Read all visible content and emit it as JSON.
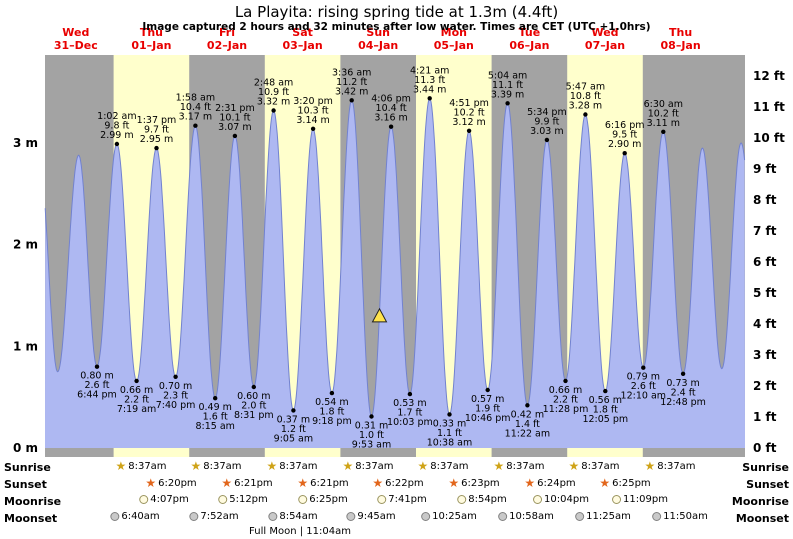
{
  "title": "La Playita: rising spring tide at 1.3m (4.4ft)",
  "subtitle": "Image captured 2 hours and 32 minutes after low water. Times are CET (UTC +1.0hrs)",
  "colors": {
    "plot_bg": "#a3a3a3",
    "day_band": "#ffffcc",
    "tide_fill": "#aeb8f2",
    "tide_stroke": "#7282cf",
    "day_label": "#e80000",
    "annotation": "#000000",
    "marker": "#ffe34d"
  },
  "chart_data": {
    "type": "area",
    "ylabel_left": "m",
    "ylabel_right": "ft",
    "y_axis_m": [
      "0 m",
      "1 m",
      "2 m",
      "3 m"
    ],
    "y_axis_ft": [
      "0 ft",
      "1 ft",
      "2 ft",
      "3 ft",
      "4 ft",
      "5 ft",
      "6 ft",
      "7 ft",
      "8 ft",
      "9 ft",
      "10 ft",
      "11 ft",
      "12 ft"
    ],
    "days": [
      {
        "dow": "Wed",
        "date": "31–Dec"
      },
      {
        "dow": "Thu",
        "date": "01–Jan"
      },
      {
        "dow": "Fri",
        "date": "02–Jan"
      },
      {
        "dow": "Sat",
        "date": "03–Jan"
      },
      {
        "dow": "Sun",
        "date": "04–Jan"
      },
      {
        "dow": "Mon",
        "date": "05–Jan"
      },
      {
        "dow": "Tue",
        "date": "06–Jan"
      },
      {
        "dow": "Wed",
        "date": "07–Jan"
      },
      {
        "dow": "Thu",
        "date": "08–Jan"
      }
    ],
    "shaded_days": [
      1,
      3,
      5,
      7
    ],
    "extremes": [
      {
        "type": "low",
        "day": 0,
        "time": "6:44 pm",
        "m": "0.80 m",
        "ft": "2.6 ft"
      },
      {
        "type": "high",
        "day": 1,
        "time": "1:02 am",
        "m": "2.99 m",
        "ft": "9.8 ft"
      },
      {
        "type": "low",
        "day": 1,
        "time": "7:19 am",
        "m": "0.66 m",
        "ft": "2.2 ft"
      },
      {
        "type": "high",
        "day": 1,
        "time": "1:37 pm",
        "m": "2.95 m",
        "ft": "9.7 ft"
      },
      {
        "type": "low",
        "day": 1,
        "time": "7:40 pm",
        "m": "0.70 m",
        "ft": "2.3 ft"
      },
      {
        "type": "high",
        "day": 2,
        "time": "1:58 am",
        "m": "3.17 m",
        "ft": "10.4 ft"
      },
      {
        "type": "low",
        "day": 2,
        "time": "8:15 am",
        "m": "0.49 m",
        "ft": "1.6 ft"
      },
      {
        "type": "high",
        "day": 2,
        "time": "2:31 pm",
        "m": "3.07 m",
        "ft": "10.1 ft"
      },
      {
        "type": "low",
        "day": 2,
        "time": "8:31 pm",
        "m": "0.60 m",
        "ft": "2.0 ft"
      },
      {
        "type": "high",
        "day": 3,
        "time": "2:48 am",
        "m": "3.32 m",
        "ft": "10.9 ft"
      },
      {
        "type": "low",
        "day": 3,
        "time": "9:05 am",
        "m": "0.37 m",
        "ft": "1.2 ft"
      },
      {
        "type": "high",
        "day": 3,
        "time": "3:20 pm",
        "m": "3.14 m",
        "ft": "10.3 ft"
      },
      {
        "type": "low",
        "day": 3,
        "time": "9:18 pm",
        "m": "0.54 m",
        "ft": "1.8 ft"
      },
      {
        "type": "high",
        "day": 4,
        "time": "3:36 am",
        "m": "3.42 m",
        "ft": "11.2 ft"
      },
      {
        "type": "low",
        "day": 4,
        "time": "9:53 am",
        "m": "0.31 m",
        "ft": "1.0 ft"
      },
      {
        "type": "high",
        "day": 4,
        "time": "4:06 pm",
        "m": "3.16 m",
        "ft": "10.4 ft"
      },
      {
        "type": "low",
        "day": 4,
        "time": "10:03 pm",
        "m": "0.53 m",
        "ft": "1.7 ft"
      },
      {
        "type": "high",
        "day": 5,
        "time": "4:21 am",
        "m": "3.44 m",
        "ft": "11.3 ft"
      },
      {
        "type": "low",
        "day": 5,
        "time": "10:38 am",
        "m": "0.33 m",
        "ft": "1.1 ft"
      },
      {
        "type": "high",
        "day": 5,
        "time": "4:51 pm",
        "m": "3.12 m",
        "ft": "10.2 ft"
      },
      {
        "type": "low",
        "day": 5,
        "time": "10:46 pm",
        "m": "0.57 m",
        "ft": "1.9 ft"
      },
      {
        "type": "high",
        "day": 6,
        "time": "5:04 am",
        "m": "3.39 m",
        "ft": "11.1 ft"
      },
      {
        "type": "low",
        "day": 6,
        "time": "11:22 am",
        "m": "0.42 m",
        "ft": "1.4 ft"
      },
      {
        "type": "high",
        "day": 6,
        "time": "5:34 pm",
        "m": "3.03 m",
        "ft": "9.9 ft"
      },
      {
        "type": "low",
        "day": 6,
        "time": "11:28 pm",
        "m": "0.66 m",
        "ft": "2.2 ft"
      },
      {
        "type": "high",
        "day": 7,
        "time": "5:47 am",
        "m": "3.28 m",
        "ft": "10.8 ft"
      },
      {
        "type": "low",
        "day": 7,
        "time": "12:05 pm",
        "m": "0.56 m",
        "ft": "1.8 ft"
      },
      {
        "type": "high",
        "day": 7,
        "time": "6:16 pm",
        "m": "2.90 m",
        "ft": "9.5 ft"
      },
      {
        "type": "low",
        "day": 8,
        "time": "12:10 am",
        "m": "0.79 m",
        "ft": "2.6 ft"
      },
      {
        "type": "high",
        "day": 8,
        "time": "6:30 am",
        "m": "3.11 m",
        "ft": "10.2 ft"
      },
      {
        "type": "low",
        "day": 8,
        "time": "12:48 pm",
        "m": "0.73 m",
        "ft": "2.4 ft"
      }
    ],
    "now_marker": {
      "day": 4,
      "time": "12:25 pm",
      "height_m": 1.3
    }
  },
  "astro": {
    "rows": [
      {
        "id": "sunrise",
        "name": "Sunrise",
        "icon": "sunrise-star-icon",
        "glyph": "★",
        "events": [
          {
            "day": 1,
            "time": "8:37am"
          },
          {
            "day": 2,
            "time": "8:37am"
          },
          {
            "day": 3,
            "time": "8:37am"
          },
          {
            "day": 4,
            "time": "8:37am"
          },
          {
            "day": 5,
            "time": "8:37am"
          },
          {
            "day": 6,
            "time": "8:37am"
          },
          {
            "day": 7,
            "time": "8:37am"
          },
          {
            "day": 8,
            "time": "8:37am"
          }
        ]
      },
      {
        "id": "sunset",
        "name": "Sunset",
        "icon": "sunset-star-icon",
        "glyph": "★",
        "events": [
          {
            "day": 1,
            "time": "6:20pm"
          },
          {
            "day": 2,
            "time": "6:21pm"
          },
          {
            "day": 3,
            "time": "6:21pm"
          },
          {
            "day": 4,
            "time": "6:22pm"
          },
          {
            "day": 5,
            "time": "6:23pm"
          },
          {
            "day": 6,
            "time": "6:24pm"
          },
          {
            "day": 7,
            "time": "6:25pm"
          }
        ]
      },
      {
        "id": "moonrise",
        "name": "Moonrise",
        "icon": "moonrise-circle-icon",
        "glyph": "",
        "events": [
          {
            "day": 1,
            "time": "4:07pm"
          },
          {
            "day": 2,
            "time": "5:12pm"
          },
          {
            "day": 3,
            "time": "6:25pm"
          },
          {
            "day": 4,
            "time": "7:41pm"
          },
          {
            "day": 5,
            "time": "8:54pm"
          },
          {
            "day": 6,
            "time": "10:04pm"
          },
          {
            "day": 7,
            "time": "11:09pm"
          }
        ]
      },
      {
        "id": "moonset",
        "name": "Moonset",
        "icon": "moonset-circle-icon",
        "glyph": "",
        "events": [
          {
            "day": 1,
            "time": "6:40am"
          },
          {
            "day": 2,
            "time": "7:52am"
          },
          {
            "day": 3,
            "time": "8:54am"
          },
          {
            "day": 4,
            "time": "9:45am"
          },
          {
            "day": 5,
            "time": "10:25am"
          },
          {
            "day": 6,
            "time": "10:58am"
          },
          {
            "day": 7,
            "time": "11:25am"
          },
          {
            "day": 8,
            "time": "11:50am"
          }
        ]
      }
    ],
    "full_moon": {
      "label": "Full Moon | 11:04am",
      "day": 3,
      "time": "11:04am"
    }
  }
}
